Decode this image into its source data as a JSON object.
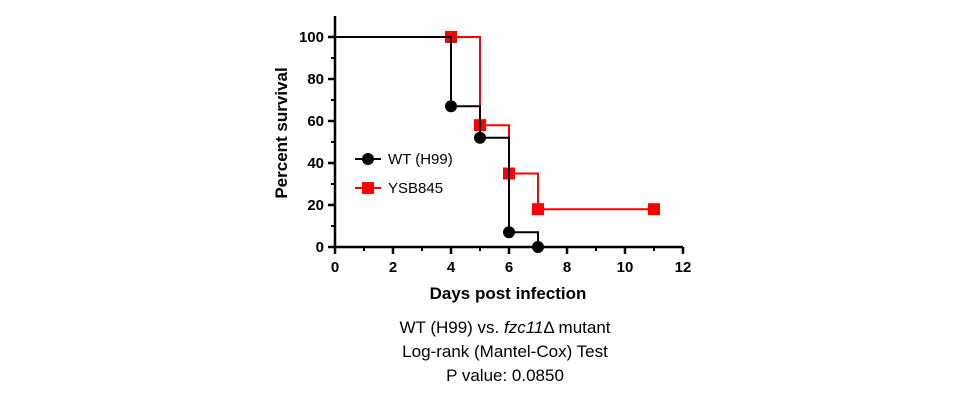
{
  "chart_data": {
    "type": "line",
    "subtype": "kaplan-meier step",
    "xlabel": "Days post infection",
    "ylabel": "Percent survival",
    "xlim": [
      0,
      12
    ],
    "ylim": [
      0,
      100
    ],
    "x_ticks": [
      0,
      2,
      4,
      6,
      8,
      10,
      12
    ],
    "y_ticks": [
      0,
      20,
      40,
      60,
      80,
      100
    ],
    "grid": false,
    "legend_position": "middle-left",
    "series": [
      {
        "name": "WT (H99)",
        "color": "#000000",
        "marker": "circle",
        "points": [
          {
            "x": 0,
            "y": 100
          },
          {
            "x": 4,
            "y": 100
          },
          {
            "x": 4,
            "y": 67
          },
          {
            "x": 5,
            "y": 67
          },
          {
            "x": 5,
            "y": 52
          },
          {
            "x": 6,
            "y": 52
          },
          {
            "x": 6,
            "y": 7
          },
          {
            "x": 7,
            "y": 7
          },
          {
            "x": 7,
            "y": 0
          }
        ],
        "marker_points": [
          {
            "x": 4,
            "y": 67
          },
          {
            "x": 5,
            "y": 52
          },
          {
            "x": 6,
            "y": 7
          },
          {
            "x": 7,
            "y": 0
          }
        ]
      },
      {
        "name": "YSB845",
        "color": "#ff0000",
        "marker": "square",
        "points": [
          {
            "x": 4,
            "y": 100
          },
          {
            "x": 5,
            "y": 100
          },
          {
            "x": 5,
            "y": 58
          },
          {
            "x": 6,
            "y": 58
          },
          {
            "x": 6,
            "y": 35
          },
          {
            "x": 7,
            "y": 35
          },
          {
            "x": 7,
            "y": 18
          },
          {
            "x": 11,
            "y": 18
          }
        ],
        "marker_points": [
          {
            "x": 4,
            "y": 100
          },
          {
            "x": 5,
            "y": 58
          },
          {
            "x": 6,
            "y": 35
          },
          {
            "x": 7,
            "y": 18
          },
          {
            "x": 11,
            "y": 18
          }
        ]
      }
    ]
  },
  "caption": {
    "line1_prefix": "WT (H99) vs. ",
    "line1_gene": "fzc11",
    "line1_suffix": "Δ mutant",
    "line2": "Log-rank (Mantel-Cox) Test",
    "line3": "P value: 0.0850"
  }
}
